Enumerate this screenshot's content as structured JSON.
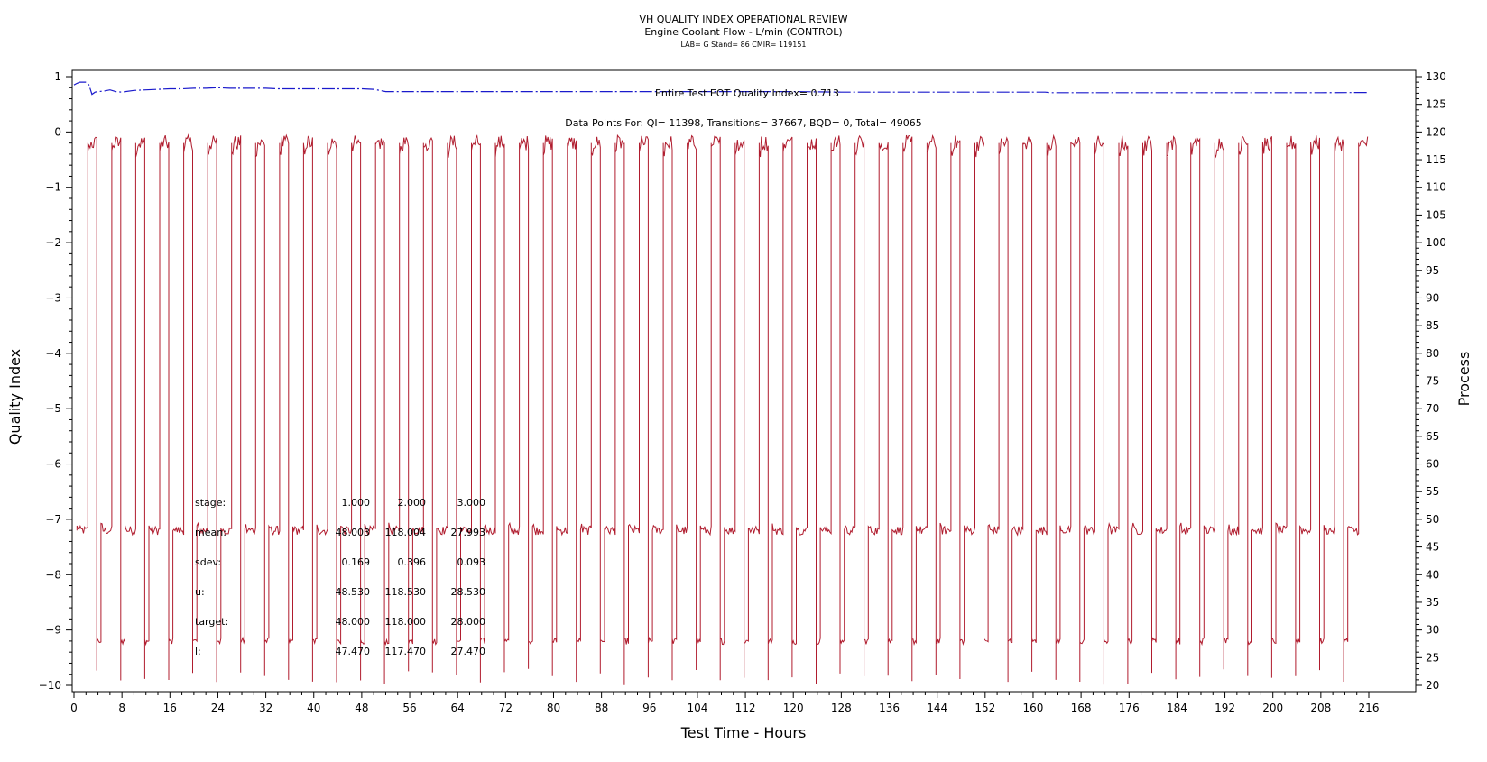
{
  "chart_data": {
    "type": "line",
    "title": "VH QUALITY INDEX OPERATIONAL REVIEW",
    "subtitle": "Engine Coolant Flow - L/min (CONTROL)",
    "subtitle2": "LAB= G Stand= 86 CMIR= 119151",
    "xlabel": "Test Time - Hours",
    "ylabel_left": "Quality Index",
    "ylabel_right": "Process",
    "xlim": [
      0,
      216
    ],
    "ylim_left": [
      -10,
      1
    ],
    "ylim_right": [
      20,
      130
    ],
    "x_ticks": [
      "0",
      "8",
      "16",
      "24",
      "32",
      "40",
      "48",
      "56",
      "64",
      "72",
      "80",
      "88",
      "96",
      "104",
      "112",
      "120",
      "128",
      "136",
      "144",
      "152",
      "160",
      "168",
      "176",
      "184",
      "192",
      "200",
      "208",
      "216"
    ],
    "y_left_ticks": [
      "1",
      "0",
      "-1",
      "-2",
      "-3",
      "-4",
      "-5",
      "-6",
      "-7",
      "-8",
      "-9",
      "-10"
    ],
    "y_right_ticks": [
      "130",
      "125",
      "120",
      "115",
      "110",
      "105",
      "100",
      "95",
      "90",
      "85",
      "80",
      "75",
      "70",
      "65",
      "60",
      "55",
      "50",
      "45",
      "40",
      "35",
      "30",
      "25",
      "20"
    ],
    "annotations": {
      "eot_quality_index": "Entire Test EOT Quality Index=  0.713",
      "data_points": "Data Points For: QI= 11398, Transitions= 37667, BQD=     0, Total= 49065"
    },
    "series": [
      {
        "name": "Quality Index",
        "axis": "left",
        "color": "#1a1acc",
        "style": "dash-dot",
        "x": [
          0,
          0.5,
          1,
          1.5,
          2,
          2.5,
          3,
          3.5,
          4,
          5,
          6,
          7,
          8,
          10,
          12,
          14,
          16,
          18,
          20,
          22,
          24,
          26,
          28,
          30,
          32,
          34,
          36,
          38,
          40,
          42,
          44,
          46,
          48,
          50,
          51,
          52,
          56,
          60,
          64,
          72,
          80,
          88,
          96,
          104,
          112,
          120,
          128,
          136,
          144,
          152,
          160,
          162,
          163,
          168,
          176,
          184,
          192,
          200,
          208,
          216
        ],
        "y": [
          0.85,
          0.88,
          0.9,
          0.9,
          0.9,
          0.85,
          0.68,
          0.72,
          0.73,
          0.74,
          0.76,
          0.73,
          0.72,
          0.75,
          0.76,
          0.77,
          0.78,
          0.78,
          0.79,
          0.79,
          0.8,
          0.79,
          0.79,
          0.79,
          0.79,
          0.78,
          0.78,
          0.78,
          0.78,
          0.78,
          0.78,
          0.78,
          0.78,
          0.77,
          0.75,
          0.73,
          0.73,
          0.73,
          0.73,
          0.73,
          0.73,
          0.73,
          0.73,
          0.73,
          0.73,
          0.73,
          0.72,
          0.72,
          0.72,
          0.72,
          0.72,
          0.72,
          0.71,
          0.71,
          0.71,
          0.71,
          0.71,
          0.71,
          0.71,
          0.713
        ]
      },
      {
        "name": "Engine Coolant Flow",
        "axis": "right",
        "color": "#b01c2e",
        "style": "solid",
        "cycle_hours": 4,
        "levels": [
          48,
          118,
          28
        ],
        "stage_durations_hours": [
          1.8,
          1.5,
          0.7
        ],
        "range_hours": [
          0.5,
          215.8
        ]
      }
    ],
    "stats_table": {
      "rows": [
        {
          "label": "stage:",
          "values": [
            "1.000",
            "2.000",
            "3.000"
          ]
        },
        {
          "label": "mean:",
          "values": [
            "48.003",
            "118.004",
            "27.993"
          ]
        },
        {
          "label": "sdev:",
          "values": [
            "0.169",
            "0.396",
            "0.093"
          ]
        },
        {
          "label": "u:",
          "values": [
            "48.530",
            "118.530",
            "28.530"
          ]
        },
        {
          "label": "target:",
          "values": [
            "48.000",
            "118.000",
            "28.000"
          ]
        },
        {
          "label": "l:",
          "values": [
            "47.470",
            "117.470",
            "27.470"
          ]
        }
      ]
    }
  }
}
